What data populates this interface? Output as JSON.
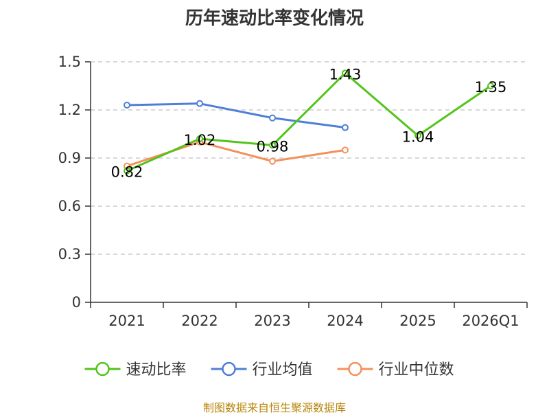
{
  "chart_data": {
    "type": "line",
    "title": "历年速动比率变化情况",
    "categories": [
      "2021",
      "2022",
      "2023",
      "2024",
      "2025",
      "2026Q1"
    ],
    "ylim": [
      0,
      1.5
    ],
    "yticks": [
      "0",
      "0.3",
      "0.6",
      "0.9",
      "1.2",
      "1.5"
    ],
    "grid": true,
    "legend_position": "bottom",
    "series": [
      {
        "name": "速动比率",
        "color": "#52c41a",
        "values": [
          0.82,
          1.02,
          0.98,
          1.43,
          1.04,
          1.35
        ],
        "labels": [
          "0.82",
          "1.02",
          "0.98",
          "1.43",
          "1.04",
          "1.35"
        ]
      },
      {
        "name": "行业均值",
        "color": "#4e7fd6",
        "values": [
          1.23,
          1.24,
          1.15,
          1.09,
          null,
          null
        ]
      },
      {
        "name": "行业中位数",
        "color": "#f4905c",
        "values": [
          0.85,
          1.0,
          0.88,
          0.95,
          null,
          null
        ]
      }
    ]
  },
  "source_note": "制图数据来自恒生聚源数据库"
}
